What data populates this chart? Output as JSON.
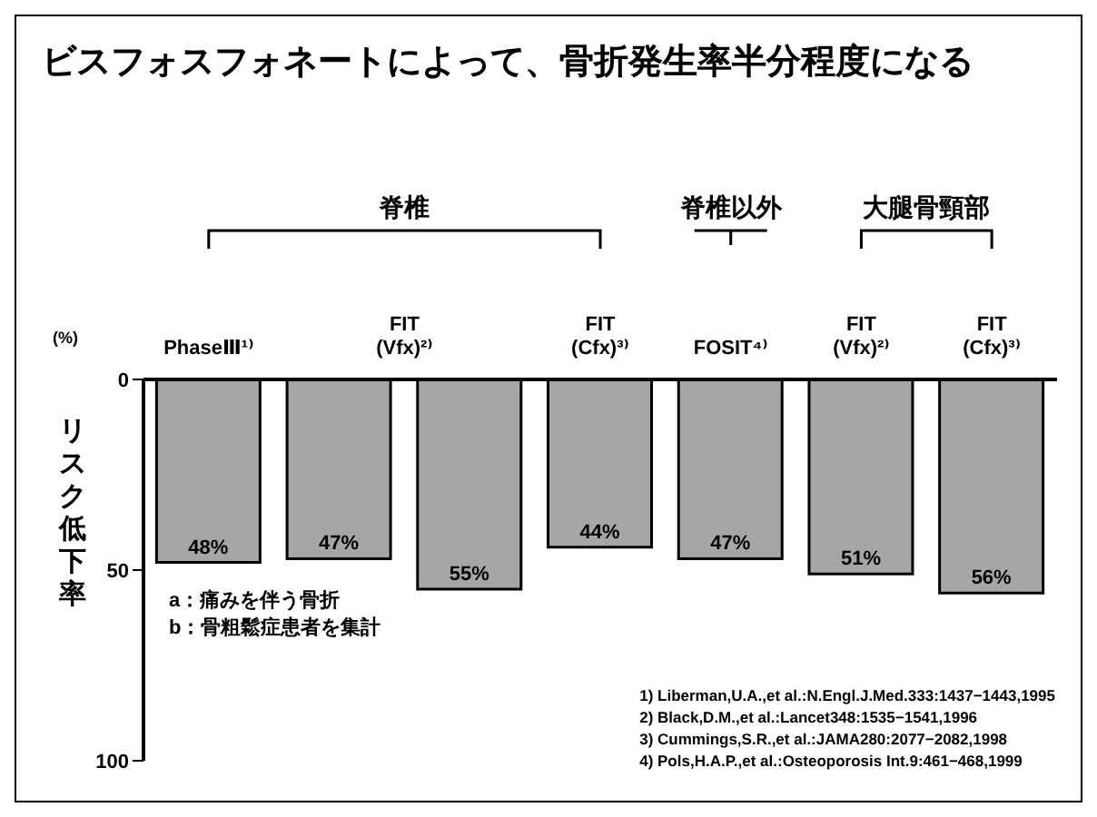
{
  "chart_data": {
    "type": "bar",
    "title": "ビスフォスフォネートによって、骨折発生率半分程度になる",
    "ylabel": "リスク低下率",
    "categories": [
      "PhaseⅢ¹⁾",
      "FIT (Vfx)²⁾",
      null,
      "FIT (Cfx)³⁾",
      "FOSIT⁴⁾",
      "FIT (Vfx)²⁾",
      "FIT (Cfx)³⁾"
    ],
    "values": [
      48,
      47,
      55,
      44,
      47,
      51,
      56
    ],
    "value_labels": [
      "48%",
      "47%",
      "55%",
      "44%",
      "47%",
      "51%",
      "56%"
    ],
    "color": "#a6a6a6",
    "ylim": [
      100,
      0
    ],
    "yticks": [
      0,
      50,
      100
    ],
    "annotations": [
      "脊椎",
      "脊椎以外",
      "大腿骨頸部",
      "(%)",
      "a：痛みを伴う骨折",
      "b：骨粗鬆症患者を集計",
      "1) Liberman,U.A.,et al.:N.Engl.J.Med.333:1437−1443,1995",
      "2) Black,D.M.,et al.:Lancet348:1535−1541,1996",
      "3) Cummings,S.R.,et al.:JAMA280:2077−2082,1998",
      "4) Pols,H.A.P.,et al.:Osteoporosis Int.9:461−468,1999"
    ]
  }
}
